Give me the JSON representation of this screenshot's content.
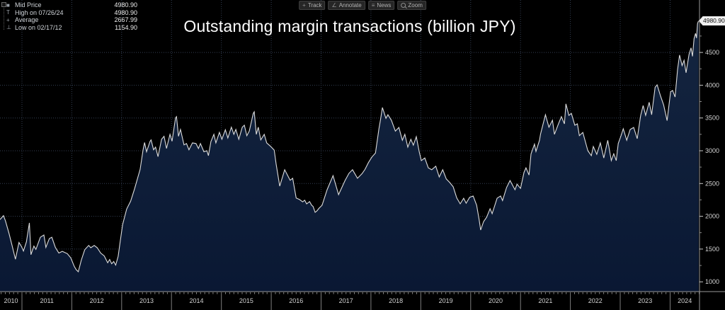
{
  "legend": {
    "rows": [
      {
        "marker": "■",
        "label": "Mid Price",
        "value": "4980.90"
      },
      {
        "marker": "T",
        "label": "High on 07/26/24",
        "value": "4980.90"
      },
      {
        "marker": "+",
        "label": "Average",
        "value": "2667.99"
      },
      {
        "marker": "⊥",
        "label": "Low on 02/17/12",
        "value": "1154.90"
      }
    ]
  },
  "toolbar": {
    "buttons": [
      {
        "label": "Track",
        "icon": "track-crosshair",
        "glyph": "+"
      },
      {
        "label": "Annotate",
        "icon": "annotate-pencil",
        "glyph": "∠"
      },
      {
        "label": "News",
        "icon": "news-list",
        "glyph": "≡"
      },
      {
        "label": "Zoom",
        "icon": "zoom-magnifier",
        "glyph": ""
      }
    ]
  },
  "chart_data": {
    "type": "area",
    "title": "Outstanding margin transactions (billion JPY)",
    "unit": "billion JPY",
    "last_price_label": "4980.90",
    "stats": {
      "mid": 4980.9,
      "high_date": "07/26/24",
      "high": 4980.9,
      "average": 2667.99,
      "low_date": "02/17/12",
      "low": 1154.9
    },
    "x_axis": {
      "range": [
        2010.56,
        2024.59
      ],
      "tick_years": [
        2010,
        2011,
        2012,
        2013,
        2014,
        2015,
        2016,
        2017,
        2018,
        2019,
        2020,
        2021,
        2022,
        2023,
        2024
      ]
    },
    "y_axis": {
      "side": "right",
      "range": [
        851,
        5300
      ],
      "ticks": [
        1000,
        1500,
        2000,
        2500,
        3000,
        3500,
        4000,
        4500
      ],
      "minor_step": 250
    },
    "colors": {
      "background": "#000000",
      "grid": "#333e52",
      "axis": "#9a9a9a",
      "line": "#dcdcdc",
      "fill_top": "#142540",
      "fill_bottom": "#0a1833",
      "price_tag_bg": "#f0f0f0",
      "price_tag_text": "#101010"
    },
    "series": [
      {
        "name": "Mid Price",
        "color": "#dcdcdc",
        "fill_top": "#142540",
        "fill_bottom": "#0a1833",
        "points": [
          [
            2010.56,
            1950
          ],
          [
            2010.63,
            2010
          ],
          [
            2010.67,
            1930
          ],
          [
            2010.74,
            1740
          ],
          [
            2010.8,
            1560
          ],
          [
            2010.87,
            1345
          ],
          [
            2010.94,
            1600
          ],
          [
            2010.99,
            1540
          ],
          [
            2011.03,
            1470
          ],
          [
            2011.09,
            1610
          ],
          [
            2011.15,
            1900
          ],
          [
            2011.18,
            1415
          ],
          [
            2011.24,
            1545
          ],
          [
            2011.28,
            1495
          ],
          [
            2011.37,
            1680
          ],
          [
            2011.44,
            1715
          ],
          [
            2011.48,
            1525
          ],
          [
            2011.55,
            1660
          ],
          [
            2011.6,
            1680
          ],
          [
            2011.67,
            1525
          ],
          [
            2011.74,
            1440
          ],
          [
            2011.81,
            1465
          ],
          [
            2011.91,
            1430
          ],
          [
            2011.98,
            1365
          ],
          [
            2012.05,
            1235
          ],
          [
            2012.09,
            1185
          ],
          [
            2012.13,
            1154.9
          ],
          [
            2012.19,
            1330
          ],
          [
            2012.26,
            1490
          ],
          [
            2012.34,
            1555
          ],
          [
            2012.38,
            1520
          ],
          [
            2012.45,
            1555
          ],
          [
            2012.51,
            1520
          ],
          [
            2012.58,
            1440
          ],
          [
            2012.65,
            1395
          ],
          [
            2012.72,
            1290
          ],
          [
            2012.76,
            1340
          ],
          [
            2012.8,
            1275
          ],
          [
            2012.84,
            1310
          ],
          [
            2012.88,
            1255
          ],
          [
            2012.93,
            1390
          ],
          [
            2012.97,
            1610
          ],
          [
            2013.02,
            1875
          ],
          [
            2013.1,
            2110
          ],
          [
            2013.18,
            2230
          ],
          [
            2013.26,
            2420
          ],
          [
            2013.33,
            2610
          ],
          [
            2013.37,
            2715
          ],
          [
            2013.43,
            3015
          ],
          [
            2013.46,
            3125
          ],
          [
            2013.5,
            2985
          ],
          [
            2013.57,
            3145
          ],
          [
            2013.59,
            3165
          ],
          [
            2013.64,
            3015
          ],
          [
            2013.68,
            3055
          ],
          [
            2013.73,
            2910
          ],
          [
            2013.8,
            3175
          ],
          [
            2013.85,
            3220
          ],
          [
            2013.9,
            3035
          ],
          [
            2013.97,
            3250
          ],
          [
            2014.01,
            3145
          ],
          [
            2014.08,
            3500
          ],
          [
            2014.1,
            3520
          ],
          [
            2014.14,
            3220
          ],
          [
            2014.18,
            3325
          ],
          [
            2014.25,
            3090
          ],
          [
            2014.3,
            3110
          ],
          [
            2014.35,
            3015
          ],
          [
            2014.42,
            3120
          ],
          [
            2014.49,
            3110
          ],
          [
            2014.54,
            3035
          ],
          [
            2014.58,
            3110
          ],
          [
            2014.65,
            2985
          ],
          [
            2014.71,
            3000
          ],
          [
            2014.74,
            2925
          ],
          [
            2014.79,
            3140
          ],
          [
            2014.85,
            3250
          ],
          [
            2014.89,
            3120
          ],
          [
            2014.96,
            3280
          ],
          [
            2015.01,
            3175
          ],
          [
            2015.08,
            3320
          ],
          [
            2015.13,
            3195
          ],
          [
            2015.2,
            3360
          ],
          [
            2015.25,
            3250
          ],
          [
            2015.29,
            3325
          ],
          [
            2015.35,
            3175
          ],
          [
            2015.42,
            3360
          ],
          [
            2015.46,
            3390
          ],
          [
            2015.51,
            3230
          ],
          [
            2015.56,
            3300
          ],
          [
            2015.64,
            3570
          ],
          [
            2015.66,
            3595
          ],
          [
            2015.7,
            3250
          ],
          [
            2015.74,
            3360
          ],
          [
            2015.79,
            3165
          ],
          [
            2015.86,
            3250
          ],
          [
            2015.91,
            3120
          ],
          [
            2015.99,
            3065
          ],
          [
            2016.06,
            3010
          ],
          [
            2016.1,
            2790
          ],
          [
            2016.17,
            2460
          ],
          [
            2016.27,
            2710
          ],
          [
            2016.38,
            2550
          ],
          [
            2016.43,
            2580
          ],
          [
            2016.5,
            2280
          ],
          [
            2016.57,
            2255
          ],
          [
            2016.63,
            2220
          ],
          [
            2016.67,
            2245
          ],
          [
            2016.71,
            2190
          ],
          [
            2016.77,
            2225
          ],
          [
            2016.81,
            2170
          ],
          [
            2016.84,
            2150
          ],
          [
            2016.88,
            2060
          ],
          [
            2016.92,
            2085
          ],
          [
            2016.95,
            2115
          ],
          [
            2017.02,
            2170
          ],
          [
            2017.12,
            2405
          ],
          [
            2017.24,
            2620
          ],
          [
            2017.35,
            2330
          ],
          [
            2017.48,
            2545
          ],
          [
            2017.56,
            2655
          ],
          [
            2017.63,
            2710
          ],
          [
            2017.73,
            2580
          ],
          [
            2017.82,
            2650
          ],
          [
            2017.88,
            2715
          ],
          [
            2017.95,
            2820
          ],
          [
            2018.02,
            2905
          ],
          [
            2018.09,
            2965
          ],
          [
            2018.13,
            3175
          ],
          [
            2018.16,
            3335
          ],
          [
            2018.19,
            3465
          ],
          [
            2018.23,
            3660
          ],
          [
            2018.3,
            3495
          ],
          [
            2018.34,
            3550
          ],
          [
            2018.41,
            3465
          ],
          [
            2018.49,
            3300
          ],
          [
            2018.56,
            3355
          ],
          [
            2018.63,
            3160
          ],
          [
            2018.68,
            3250
          ],
          [
            2018.74,
            3055
          ],
          [
            2018.8,
            3175
          ],
          [
            2018.85,
            3085
          ],
          [
            2018.91,
            3215
          ],
          [
            2018.97,
            2980
          ],
          [
            2019.01,
            2850
          ],
          [
            2019.08,
            2890
          ],
          [
            2019.15,
            2740
          ],
          [
            2019.22,
            2710
          ],
          [
            2019.3,
            2765
          ],
          [
            2019.37,
            2600
          ],
          [
            2019.44,
            2710
          ],
          [
            2019.51,
            2570
          ],
          [
            2019.58,
            2515
          ],
          [
            2019.65,
            2450
          ],
          [
            2019.72,
            2280
          ],
          [
            2019.79,
            2190
          ],
          [
            2019.86,
            2275
          ],
          [
            2019.91,
            2200
          ],
          [
            2019.98,
            2290
          ],
          [
            2020.05,
            2310
          ],
          [
            2020.12,
            2170
          ],
          [
            2020.17,
            1950
          ],
          [
            2020.2,
            1790
          ],
          [
            2020.26,
            1920
          ],
          [
            2020.32,
            1985
          ],
          [
            2020.39,
            2115
          ],
          [
            2020.43,
            2040
          ],
          [
            2020.53,
            2275
          ],
          [
            2020.6,
            2310
          ],
          [
            2020.64,
            2240
          ],
          [
            2020.72,
            2440
          ],
          [
            2020.79,
            2545
          ],
          [
            2020.89,
            2405
          ],
          [
            2020.93,
            2490
          ],
          [
            2021.0,
            2425
          ],
          [
            2021.07,
            2670
          ],
          [
            2021.11,
            2740
          ],
          [
            2021.17,
            2630
          ],
          [
            2021.21,
            2950
          ],
          [
            2021.28,
            3100
          ],
          [
            2021.31,
            2990
          ],
          [
            2021.38,
            3160
          ],
          [
            2021.4,
            3250
          ],
          [
            2021.45,
            3400
          ],
          [
            2021.5,
            3550
          ],
          [
            2021.57,
            3360
          ],
          [
            2021.64,
            3465
          ],
          [
            2021.68,
            3250
          ],
          [
            2021.75,
            3390
          ],
          [
            2021.82,
            3520
          ],
          [
            2021.88,
            3410
          ],
          [
            2021.91,
            3715
          ],
          [
            2021.97,
            3540
          ],
          [
            2022.02,
            3570
          ],
          [
            2022.09,
            3390
          ],
          [
            2022.14,
            3410
          ],
          [
            2022.18,
            3230
          ],
          [
            2022.25,
            3280
          ],
          [
            2022.35,
            3000
          ],
          [
            2022.42,
            2925
          ],
          [
            2022.46,
            3065
          ],
          [
            2022.53,
            2945
          ],
          [
            2022.6,
            3120
          ],
          [
            2022.67,
            2890
          ],
          [
            2022.75,
            3160
          ],
          [
            2022.82,
            2850
          ],
          [
            2022.87,
            2955
          ],
          [
            2022.92,
            2850
          ],
          [
            2022.96,
            3110
          ],
          [
            2023.01,
            3215
          ],
          [
            2023.06,
            3335
          ],
          [
            2023.13,
            3160
          ],
          [
            2023.2,
            3325
          ],
          [
            2023.27,
            3355
          ],
          [
            2023.34,
            3185
          ],
          [
            2023.41,
            3540
          ],
          [
            2023.46,
            3690
          ],
          [
            2023.51,
            3540
          ],
          [
            2023.58,
            3740
          ],
          [
            2023.63,
            3550
          ],
          [
            2023.7,
            3970
          ],
          [
            2023.74,
            4005
          ],
          [
            2023.81,
            3830
          ],
          [
            2023.87,
            3700
          ],
          [
            2023.94,
            3460
          ],
          [
            2024.01,
            3900
          ],
          [
            2024.05,
            3920
          ],
          [
            2024.1,
            3820
          ],
          [
            2024.15,
            4240
          ],
          [
            2024.19,
            4460
          ],
          [
            2024.24,
            4300
          ],
          [
            2024.28,
            4380
          ],
          [
            2024.32,
            4190
          ],
          [
            2024.38,
            4470
          ],
          [
            2024.42,
            4570
          ],
          [
            2024.45,
            4440
          ],
          [
            2024.48,
            4710
          ],
          [
            2024.51,
            4790
          ],
          [
            2024.53,
            4720
          ],
          [
            2024.55,
            4940
          ],
          [
            2024.57,
            4980.9
          ]
        ]
      }
    ]
  }
}
